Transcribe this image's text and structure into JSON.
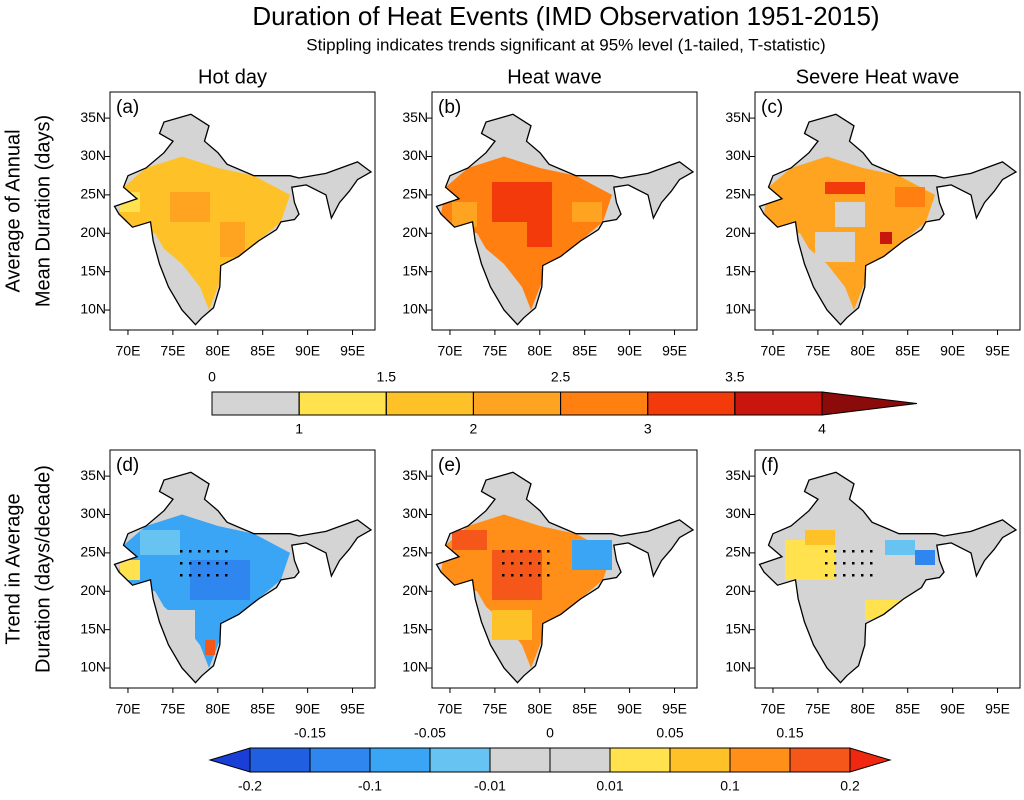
{
  "title": "Duration of Heat Events (IMD Observation 1951-2015)",
  "subtitle": "Stippling indicates trends significant at 95% level (1-tailed, T-statistic)",
  "columns": [
    "Hot day",
    "Heat wave",
    "Severe Heat wave"
  ],
  "rows": [
    {
      "label_lines": [
        "Average of Annual",
        "Mean Duration (days)"
      ]
    },
    {
      "label_lines": [
        "Trend in Average",
        "Duration (days/decade)"
      ]
    }
  ],
  "panels": [
    {
      "label": "(a)"
    },
    {
      "label": "(b)"
    },
    {
      "label": "(c)"
    },
    {
      "label": "(d)"
    },
    {
      "label": "(e)"
    },
    {
      "label": "(f)"
    }
  ],
  "lonlim": [
    68,
    97.5
  ],
  "latlim": [
    7.4,
    38.4
  ],
  "lon_ticks": [
    {
      "value": 70,
      "label": "70E"
    },
    {
      "value": 75,
      "label": "75E"
    },
    {
      "value": 80,
      "label": "80E"
    },
    {
      "value": 85,
      "label": "85E"
    },
    {
      "value": 90,
      "label": "90E"
    },
    {
      "value": 95,
      "label": "95E"
    }
  ],
  "lat_ticks": [
    {
      "value": 35,
      "label": "35N"
    },
    {
      "value": 30,
      "label": "30N"
    },
    {
      "value": 25,
      "label": "25N"
    },
    {
      "value": 20,
      "label": "20N"
    },
    {
      "value": 15,
      "label": "15N"
    },
    {
      "value": 10,
      "label": "10N"
    }
  ],
  "colorbars": [
    {
      "bounds": [
        0,
        1,
        1.5,
        2,
        2.5,
        3,
        3.5,
        4
      ],
      "first_label": "top",
      "colors": [
        "#d4d4d4",
        "#ffe24d",
        "#ffc128",
        "#ffa420",
        "#ff7f10",
        "#f23a0a",
        "#c8160c"
      ],
      "extend_low": null,
      "extend_high": "#8b0a0a"
    },
    {
      "bounds": [
        -0.2,
        -0.15,
        -0.1,
        -0.05,
        -0.01,
        0,
        0.01,
        0.05,
        0.1,
        0.15,
        0.2
      ],
      "first_label": "bottom",
      "colors": [
        "#1f5fe0",
        "#2f86ee",
        "#3aa4f5",
        "#66c3f2",
        "#d4d4d4",
        "#d4d4d4",
        "#ffe24d",
        "#ffc128",
        "#ff8f18",
        "#f5561a"
      ],
      "extend_low": "#1a3fd6",
      "extend_high": "#f02810"
    }
  ]
}
